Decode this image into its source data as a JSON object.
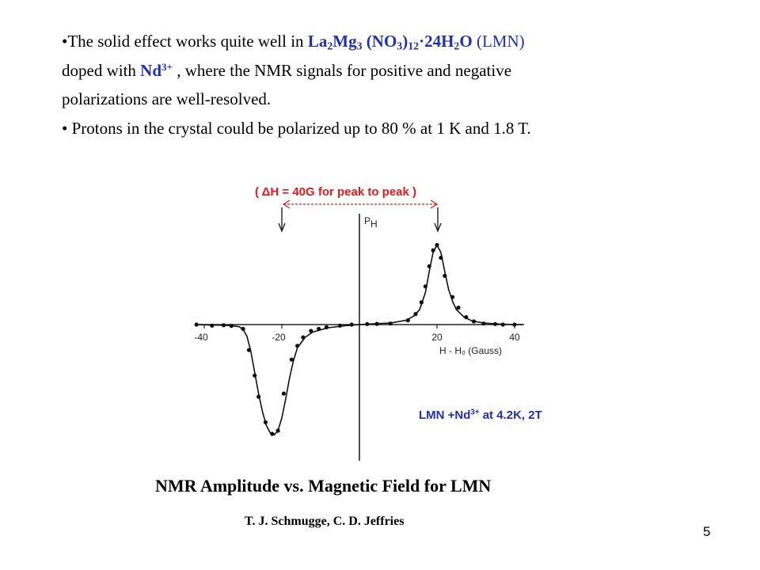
{
  "bullet1": {
    "lead": "•The solid effect works quite well in ",
    "formula": {
      "la": "La",
      "la_sub": "2",
      "mg": "Mg",
      "mg_sub": "3",
      "no3": " (NO",
      "no3_sub": "3",
      "close": ")",
      "close_sub": "12",
      "water": "·24H",
      "water_sub": "2",
      "o": "O"
    },
    "abbr": " (LMN)",
    "line2_start": "doped with ",
    "dopant": "Nd",
    "dopant_sup": "3+",
    "line2_rest": " ,  where the NMR signals for positive  and negative",
    "line3": "polarizations are well-resolved."
  },
  "bullet2": "• Protons in the crystal could be polarized up to 80 % at 1 K and 1.8 T.",
  "delta_h": "( ΔH  = 40G for peak to peak )",
  "sample_label": {
    "text": "LMN +Nd",
    "sup": "3+",
    "rest": " at 4.2K, 2T"
  },
  "figure_title": "NMR Amplitude vs. Magnetic Field for LMN",
  "authors": "T. J. Schmugge, C. D. Jeffries",
  "page_number": "5",
  "colors": {
    "formula": "#1f2fb3",
    "delta_h": "#e11a1a"
  },
  "chart_data": {
    "type": "line",
    "xlabel": "H - H₀ (Gauss)",
    "ylabel": "P_H",
    "xlim": [
      -42,
      42
    ],
    "ylim": [
      -1.1,
      0.85
    ],
    "x_ticks": [
      -40,
      -20,
      20,
      40
    ],
    "x_tick_labels": [
      "-40",
      "-20",
      "20",
      "40"
    ],
    "peak_arrows_x": [
      -20,
      20
    ],
    "series": [
      {
        "points": [
          [
            -42,
            0.0
          ],
          [
            -39,
            -0.003
          ],
          [
            -35,
            -0.006
          ],
          [
            -33,
            -0.01
          ],
          [
            -31,
            -0.02
          ],
          [
            -30,
            -0.045
          ],
          [
            -29,
            -0.11
          ],
          [
            -28,
            -0.25
          ],
          [
            -27,
            -0.45
          ],
          [
            -26,
            -0.65
          ],
          [
            -25,
            -0.82
          ],
          [
            -24,
            -0.95
          ],
          [
            -23,
            -1.02
          ],
          [
            -22,
            -1.04
          ],
          [
            -21,
            -1.0
          ],
          [
            -20,
            -0.88
          ],
          [
            -19,
            -0.7
          ],
          [
            -18,
            -0.5
          ],
          [
            -17,
            -0.34
          ],
          [
            -16,
            -0.22
          ],
          [
            -14,
            -0.12
          ],
          [
            -12,
            -0.07
          ],
          [
            -8,
            -0.03
          ],
          [
            -4,
            -0.012
          ],
          [
            0,
            0.0
          ],
          [
            4,
            0.008
          ],
          [
            8,
            0.015
          ],
          [
            12,
            0.04
          ],
          [
            14,
            0.08
          ],
          [
            15.5,
            0.14
          ],
          [
            17,
            0.3
          ],
          [
            18,
            0.5
          ],
          [
            19,
            0.68
          ],
          [
            20,
            0.75
          ],
          [
            21,
            0.68
          ],
          [
            22,
            0.5
          ],
          [
            23,
            0.33
          ],
          [
            24,
            0.22
          ],
          [
            25,
            0.14
          ],
          [
            27,
            0.07
          ],
          [
            29,
            0.035
          ],
          [
            32,
            0.015
          ],
          [
            36,
            0.005
          ],
          [
            40,
            0.0
          ],
          [
            42,
            0.0
          ]
        ],
        "markers": [
          [
            -42,
            0.0
          ],
          [
            -38,
            -0.01
          ],
          [
            -35,
            -0.006
          ],
          [
            -33,
            -0.012
          ],
          [
            -30,
            -0.04
          ],
          [
            -28.5,
            -0.24
          ],
          [
            -27,
            -0.48
          ],
          [
            -26,
            -0.68
          ],
          [
            -24.2,
            -0.92
          ],
          [
            -22.5,
            -1.03
          ],
          [
            -21,
            -1.0
          ],
          [
            -19.5,
            -0.65
          ],
          [
            -17.5,
            -0.33
          ],
          [
            -16,
            -0.2
          ],
          [
            -14.5,
            -0.12
          ],
          [
            -12.5,
            -0.06
          ],
          [
            -10.5,
            -0.04
          ],
          [
            -8.5,
            -0.025
          ],
          [
            -5,
            -0.01
          ],
          [
            -2,
            0.0
          ],
          [
            2,
            0.005
          ],
          [
            4.5,
            0.007
          ],
          [
            8,
            0.01
          ],
          [
            12.5,
            0.04
          ],
          [
            14.5,
            0.1
          ],
          [
            16,
            0.21
          ],
          [
            17,
            0.36
          ],
          [
            18,
            0.55
          ],
          [
            19,
            0.7
          ],
          [
            20,
            0.75
          ],
          [
            21,
            0.63
          ],
          [
            22,
            0.46
          ],
          [
            24,
            0.26
          ],
          [
            25.5,
            0.16
          ],
          [
            27.5,
            0.07
          ],
          [
            29.5,
            0.03
          ],
          [
            32,
            0.01
          ],
          [
            35,
            0.005
          ],
          [
            37,
            0.0
          ],
          [
            40,
            0.0
          ]
        ]
      }
    ]
  }
}
